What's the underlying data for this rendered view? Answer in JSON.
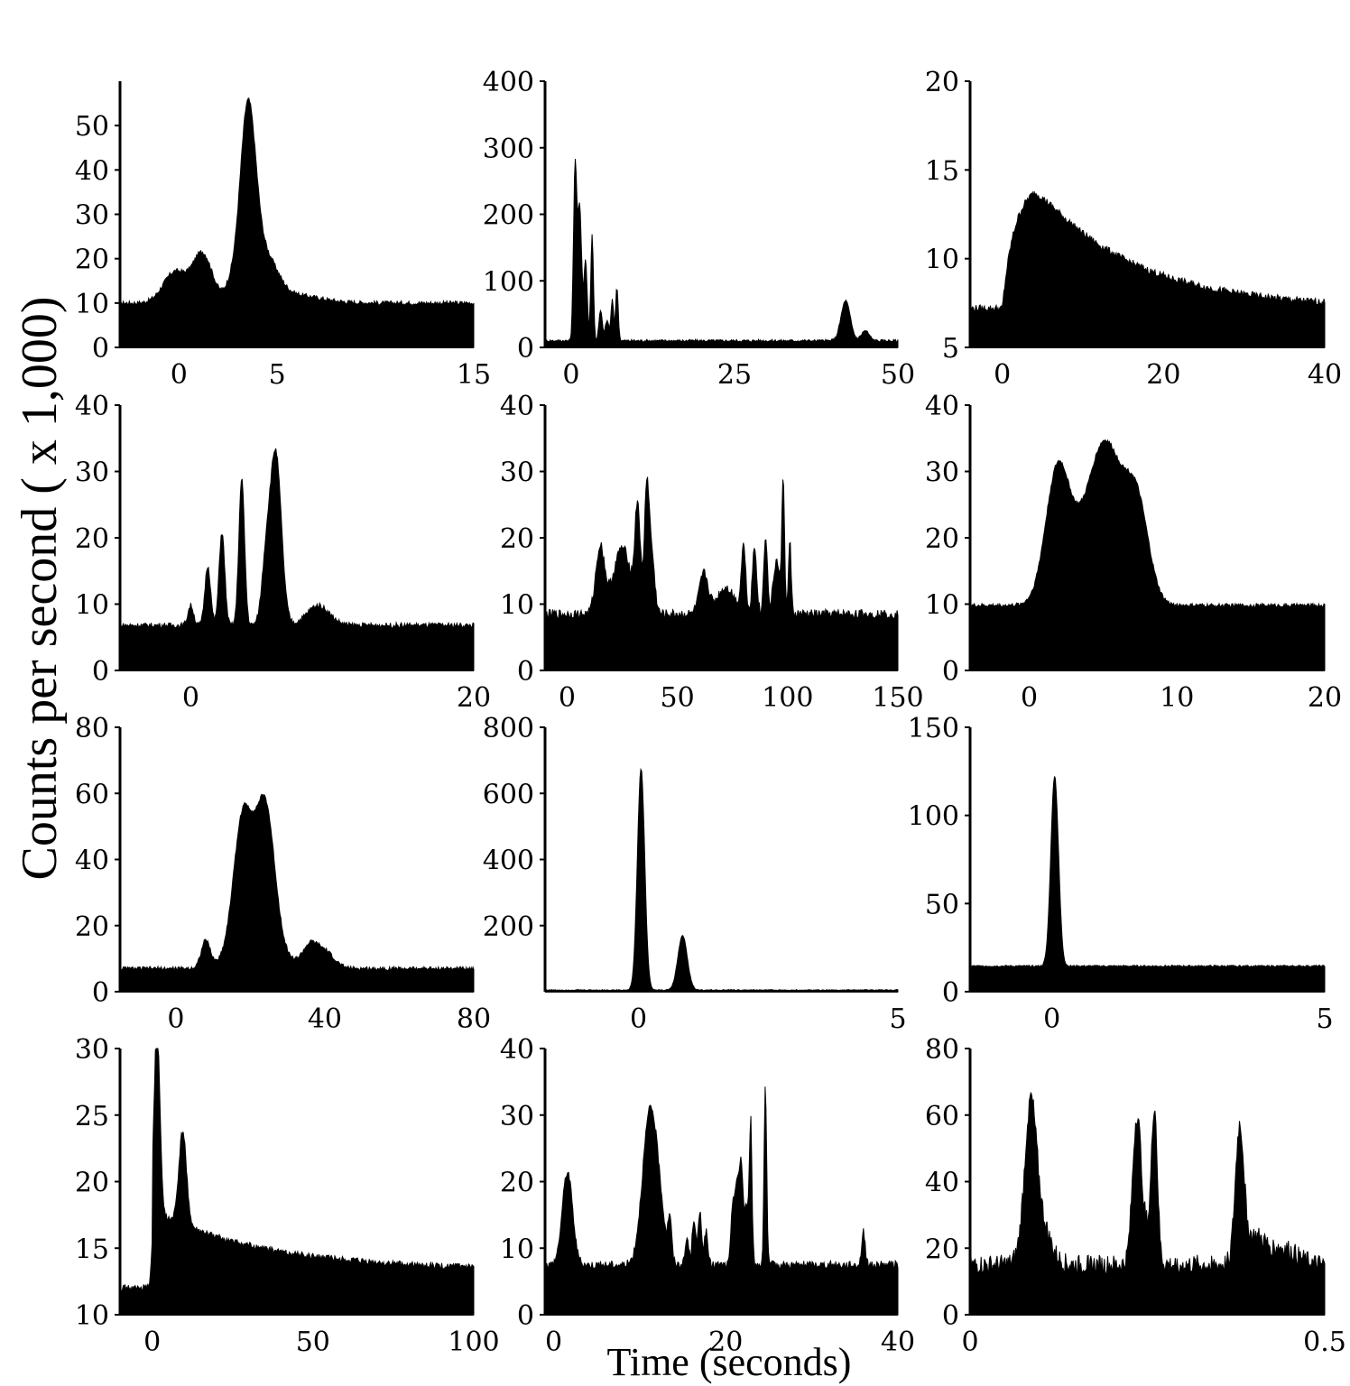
{
  "figure": {
    "ylabel": "Counts per second  ( x 1,000)",
    "xlabel": "Time (seconds)"
  },
  "chart_data": [
    {
      "type": "area",
      "xlim": [
        -3,
        15
      ],
      "ylim": [
        0,
        60
      ],
      "xticks": [
        0,
        5,
        15
      ],
      "yticks": [
        0,
        10,
        20,
        30,
        40,
        50
      ],
      "baseline": 10,
      "noise": 0.5,
      "peaks": [
        [
          -0.2,
          7,
          0.6
        ],
        [
          1.2,
          11,
          0.5
        ],
        [
          2.6,
          3,
          0.3
        ],
        [
          3.5,
          42,
          0.4
        ],
        [
          4.4,
          9,
          0.6
        ],
        [
          5.5,
          2,
          1.5
        ]
      ]
    },
    {
      "type": "area",
      "xlim": [
        -4,
        50
      ],
      "ylim": [
        0,
        400
      ],
      "xticks": [
        0,
        25,
        50
      ],
      "yticks": [
        0,
        100,
        200,
        300,
        400
      ],
      "baseline": 10,
      "noise": 2,
      "peaks": [
        [
          0.6,
          260,
          0.25
        ],
        [
          1.3,
          200,
          0.3
        ],
        [
          2.2,
          120,
          0.25
        ],
        [
          3.2,
          160,
          0.2
        ],
        [
          4.5,
          45,
          0.25
        ],
        [
          6.3,
          60,
          0.2
        ],
        [
          7.0,
          80,
          0.2
        ],
        [
          5.5,
          30,
          0.3
        ],
        [
          42,
          60,
          0.7
        ],
        [
          45,
          15,
          0.6
        ]
      ]
    },
    {
      "type": "area",
      "xlim": [
        -4,
        40
      ],
      "ylim": [
        5,
        20
      ],
      "xticks": [
        0,
        20,
        40
      ],
      "yticks": [
        5,
        10,
        15,
        20
      ],
      "baseline": 7.2,
      "noise": 0.2,
      "peaks": [
        [
          3.5,
          7.5,
          1.5
        ]
      ],
      "decay": {
        "start": 4,
        "amp": 7,
        "tau": 12
      },
      "shape": "rise-decay"
    },
    {
      "type": "area",
      "xlim": [
        -5,
        20
      ],
      "ylim": [
        0,
        40
      ],
      "xticks": [
        0,
        20
      ],
      "yticks": [
        0,
        10,
        20,
        30,
        40
      ],
      "baseline": 6.8,
      "noise": 0.4,
      "peaks": [
        [
          0,
          3,
          0.2
        ],
        [
          1.2,
          9,
          0.2
        ],
        [
          2.2,
          14,
          0.2
        ],
        [
          3.6,
          22,
          0.2
        ],
        [
          5.3,
          8,
          0.3
        ],
        [
          6.0,
          26,
          0.4
        ],
        [
          9,
          3,
          0.8
        ]
      ]
    },
    {
      "type": "area",
      "xlim": [
        -10,
        150
      ],
      "ylim": [
        0,
        40
      ],
      "xticks": [
        0,
        50,
        100,
        150
      ],
      "yticks": [
        0,
        10,
        20,
        30,
        40
      ],
      "baseline": 8.5,
      "noise": 0.7,
      "peaks": [
        [
          15,
          10,
          2
        ],
        [
          25,
          10,
          4
        ],
        [
          32,
          15,
          1.2
        ],
        [
          36,
          16,
          1
        ],
        [
          38,
          10,
          1.5
        ],
        [
          62,
          6,
          2
        ],
        [
          72,
          4,
          4
        ],
        [
          80,
          10,
          1
        ],
        [
          85,
          10,
          1
        ],
        [
          90,
          12,
          0.8
        ],
        [
          95,
          8,
          1.5
        ],
        [
          98,
          20,
          0.6
        ],
        [
          101,
          11,
          0.6
        ]
      ]
    },
    {
      "type": "area",
      "xlim": [
        -4,
        20
      ],
      "ylim": [
        0,
        40
      ],
      "xticks": [
        0,
        10,
        20
      ],
      "yticks": [
        0,
        10,
        20,
        30,
        40
      ],
      "baseline": 9.8,
      "noise": 0.3,
      "peaks": [
        [
          1.9,
          18,
          0.8
        ],
        [
          4.0,
          9,
          1.5
        ],
        [
          5.3,
          18,
          1.1
        ],
        [
          7.3,
          14,
          0.8
        ]
      ]
    },
    {
      "type": "area",
      "xlim": [
        -15,
        80
      ],
      "ylim": [
        0,
        80
      ],
      "xticks": [
        0,
        40,
        80
      ],
      "yticks": [
        0,
        20,
        40,
        60,
        80
      ],
      "baseline": 7,
      "noise": 0.6,
      "peaks": [
        [
          8,
          8,
          1.2
        ],
        [
          18,
          40,
          2.5
        ],
        [
          24,
          42,
          2.5
        ],
        [
          22,
          8,
          6
        ],
        [
          36,
          6,
          2
        ],
        [
          40,
          5,
          2.5
        ]
      ]
    },
    {
      "type": "area",
      "xlim": [
        -1.8,
        5
      ],
      "ylim": [
        0,
        800
      ],
      "xticks": [
        0,
        5
      ],
      "yticks": [
        200,
        400,
        600,
        800
      ],
      "baseline": 5,
      "noise": 1.5,
      "peaks": [
        [
          0.05,
          670,
          0.07
        ],
        [
          0.85,
          165,
          0.09
        ]
      ]
    },
    {
      "type": "area",
      "xlim": [
        -1.5,
        5
      ],
      "ylim": [
        0,
        150
      ],
      "xticks": [
        0,
        5
      ],
      "yticks": [
        0,
        50,
        100,
        150
      ],
      "baseline": 14.5,
      "noise": 0.5,
      "peaks": [
        [
          0.05,
          108,
          0.07
        ]
      ]
    },
    {
      "type": "area",
      "xlim": [
        -10,
        100
      ],
      "ylim": [
        10,
        30
      ],
      "xticks": [
        0,
        50,
        100
      ],
      "yticks": [
        10,
        15,
        20,
        25,
        30
      ],
      "baseline": 12,
      "noise": 0.25,
      "peaks": [
        [
          1.5,
          14,
          0.9
        ],
        [
          9.5,
          7,
          1.2
        ]
      ],
      "decay": {
        "start": 0,
        "amp": 4.5,
        "tau": 35
      },
      "shape": "step"
    },
    {
      "type": "area",
      "xlim": [
        -1,
        40
      ],
      "ylim": [
        0,
        40
      ],
      "xticks": [
        0,
        20,
        40
      ],
      "yticks": [
        0,
        10,
        20,
        30,
        40
      ],
      "baseline": 7.5,
      "noise": 0.6,
      "peaks": [
        [
          1.6,
          14,
          0.6
        ],
        [
          11,
          18,
          0.8
        ],
        [
          12,
          10,
          0.8
        ],
        [
          13.5,
          6,
          0.2
        ],
        [
          15.5,
          4,
          0.2
        ],
        [
          16.3,
          7,
          0.2
        ],
        [
          17.0,
          8,
          0.2
        ],
        [
          17.7,
          5,
          0.2
        ],
        [
          20.8,
          8,
          0.2
        ],
        [
          21.3,
          12,
          0.25
        ],
        [
          21.8,
          14,
          0.2
        ],
        [
          22.4,
          9,
          0.25
        ],
        [
          22.9,
          21,
          0.15
        ],
        [
          24.6,
          27,
          0.15
        ],
        [
          36,
          5,
          0.2
        ]
      ]
    },
    {
      "type": "area",
      "xlim": [
        0,
        0.5
      ],
      "ylim": [
        0,
        80
      ],
      "xticks": [
        0,
        0.5
      ],
      "yticks": [
        0,
        20,
        40,
        60,
        80
      ],
      "baseline": 15,
      "noise": 3,
      "peaks": [
        [
          0.085,
          38,
          0.008
        ],
        [
          0.095,
          15,
          0.015
        ],
        [
          0.235,
          42,
          0.006
        ],
        [
          0.25,
          10,
          0.01
        ],
        [
          0.26,
          42,
          0.004
        ],
        [
          0.38,
          39,
          0.006
        ],
        [
          0.4,
          8,
          0.015
        ],
        [
          0.44,
          5,
          0.02
        ]
      ]
    }
  ]
}
